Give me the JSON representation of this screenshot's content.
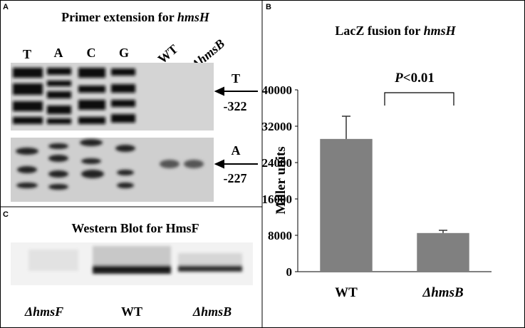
{
  "panel_a": {
    "letter": "A",
    "title_prefix": "Primer extension for ",
    "title_gene": "hmsH",
    "lanes": [
      "T",
      "A",
      "C",
      "G"
    ],
    "samples": [
      "WT",
      "ΔhmsB"
    ],
    "markers": [
      {
        "base": "T",
        "position": "-322"
      },
      {
        "base": "A",
        "position": "-227"
      }
    ]
  },
  "panel_c": {
    "letter": "C",
    "title": "Western Blot for HmsF",
    "lanes": [
      "ΔhmsF",
      "WT",
      "ΔhmsB"
    ]
  },
  "chart_data": {
    "type": "bar",
    "panel_label": "B",
    "title_prefix": "LacZ fusion for ",
    "title_gene": "hmsH",
    "y_label": "Miller units",
    "categories": [
      "WT",
      "ΔhmsB"
    ],
    "values": [
      29200,
      8500
    ],
    "errors": [
      5000,
      600
    ],
    "color": "#808080",
    "ylim": [
      0,
      40000
    ],
    "yticks": [
      0,
      8000,
      16000,
      24000,
      32000,
      40000
    ],
    "annotation_italic": "P",
    "annotation_rest": "<0.01"
  }
}
